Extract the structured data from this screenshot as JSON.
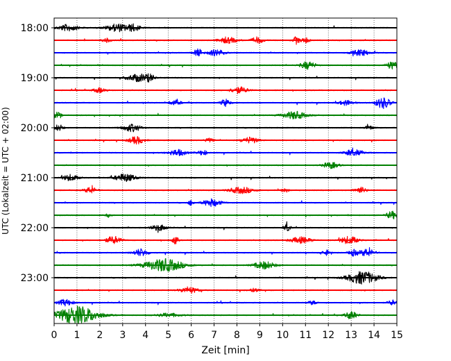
{
  "chart_data": {
    "type": "line",
    "xlabel": "Zeit  [min]",
    "ylabel": "UTC (Lokalzeit = UTC + 02:00)",
    "xlim": [
      0,
      15
    ],
    "x_ticks": [
      "0",
      "1",
      "2",
      "3",
      "4",
      "5",
      "6",
      "7",
      "8",
      "9",
      "10",
      "11",
      "12",
      "13",
      "14",
      "15"
    ],
    "y_ticks": [
      "18:00",
      "19:00",
      "20:00",
      "21:00",
      "22:00",
      "23:00"
    ],
    "grid": "vertical dotted",
    "colors": [
      "#000000",
      "#ff0000",
      "#0000ff",
      "#008000"
    ],
    "trace_interval_min": 15,
    "traces": [
      {
        "start": "18:00",
        "color": "#000000",
        "events": [
          [
            0.6,
            0.7,
            0.5
          ],
          [
            2.8,
            0.8,
            0.6
          ],
          [
            3.5,
            0.4,
            0.5
          ]
        ]
      },
      {
        "start": "18:15",
        "color": "#ff0000",
        "events": [
          [
            2.3,
            0.3,
            0.3
          ],
          [
            7.6,
            0.6,
            0.5
          ],
          [
            8.9,
            0.4,
            0.5
          ],
          [
            10.6,
            0.2,
            0.6
          ],
          [
            11.0,
            0.3,
            0.4
          ]
        ]
      },
      {
        "start": "18:30",
        "color": "#0000ff",
        "events": [
          [
            6.3,
            0.3,
            0.6
          ],
          [
            7.1,
            0.6,
            0.5
          ],
          [
            13.4,
            0.6,
            0.5
          ]
        ]
      },
      {
        "start": "18:45",
        "color": "#008000",
        "events": [
          [
            11.1,
            0.5,
            0.6
          ],
          [
            14.8,
            0.4,
            0.6
          ]
        ]
      },
      {
        "start": "19:00",
        "color": "#000000",
        "events": [
          [
            3.7,
            0.8,
            0.6
          ],
          [
            4.2,
            0.3,
            0.4
          ]
        ]
      },
      {
        "start": "19:15",
        "color": "#ff0000",
        "events": [
          [
            2.0,
            0.4,
            0.4
          ],
          [
            8.1,
            0.6,
            0.5
          ]
        ]
      },
      {
        "start": "19:30",
        "color": "#0000ff",
        "events": [
          [
            5.3,
            0.4,
            0.4
          ],
          [
            7.5,
            0.3,
            0.6
          ],
          [
            12.8,
            0.5,
            0.4
          ],
          [
            14.4,
            0.5,
            0.9
          ]
        ]
      },
      {
        "start": "19:45",
        "color": "#008000",
        "events": [
          [
            0.1,
            0.3,
            0.5
          ],
          [
            10.5,
            0.8,
            0.6
          ]
        ]
      },
      {
        "start": "20:00",
        "color": "#000000",
        "events": [
          [
            0.2,
            0.3,
            0.5
          ],
          [
            3.4,
            0.6,
            0.6
          ],
          [
            13.8,
            0.3,
            0.3
          ]
        ]
      },
      {
        "start": "20:15",
        "color": "#ff0000",
        "events": [
          [
            3.6,
            0.5,
            0.6
          ],
          [
            6.8,
            0.3,
            0.3
          ],
          [
            8.6,
            0.5,
            0.5
          ]
        ]
      },
      {
        "start": "20:30",
        "color": "#0000ff",
        "events": [
          [
            5.4,
            0.6,
            0.5
          ],
          [
            6.5,
            0.3,
            0.4
          ],
          [
            13.1,
            0.6,
            0.5
          ]
        ]
      },
      {
        "start": "20:45",
        "color": "#008000",
        "events": [
          [
            12.1,
            0.5,
            0.5
          ]
        ]
      },
      {
        "start": "21:00",
        "color": "#000000",
        "events": [
          [
            0.7,
            0.5,
            0.5
          ],
          [
            3.1,
            0.7,
            0.6
          ]
        ]
      },
      {
        "start": "21:15",
        "color": "#ff0000",
        "events": [
          [
            1.6,
            0.4,
            0.5
          ],
          [
            8.2,
            0.8,
            0.5
          ],
          [
            10.1,
            0.2,
            0.4
          ],
          [
            13.4,
            0.4,
            0.5
          ]
        ]
      },
      {
        "start": "21:30",
        "color": "#0000ff",
        "events": [
          [
            6.0,
            0.2,
            0.4
          ],
          [
            6.9,
            0.6,
            0.6
          ]
        ]
      },
      {
        "start": "21:45",
        "color": "#008000",
        "events": [
          [
            2.4,
            0.2,
            0.3
          ],
          [
            14.8,
            0.4,
            0.6
          ]
        ]
      },
      {
        "start": "22:00",
        "color": "#000000",
        "events": [
          [
            4.6,
            0.5,
            0.5
          ],
          [
            10.2,
            0.2,
            0.7
          ]
        ]
      },
      {
        "start": "22:15",
        "color": "#ff0000",
        "events": [
          [
            2.6,
            0.5,
            0.6
          ],
          [
            5.3,
            0.2,
            0.6
          ],
          [
            10.8,
            0.7,
            0.5
          ],
          [
            12.9,
            0.6,
            0.6
          ]
        ]
      },
      {
        "start": "22:30",
        "color": "#0000ff",
        "events": [
          [
            3.8,
            0.5,
            0.6
          ],
          [
            11.9,
            0.3,
            0.4
          ],
          [
            13.1,
            0.3,
            0.5
          ],
          [
            13.7,
            0.5,
            0.6
          ]
        ]
      },
      {
        "start": "22:45",
        "color": "#008000",
        "events": [
          [
            4.8,
            1.3,
            1.0
          ],
          [
            9.2,
            0.7,
            0.6
          ]
        ]
      },
      {
        "start": "23:00",
        "color": "#000000",
        "events": [
          [
            13.5,
            1.0,
            1.0
          ]
        ]
      },
      {
        "start": "23:15",
        "color": "#ff0000",
        "events": [
          [
            5.9,
            0.6,
            0.5
          ],
          [
            8.8,
            0.4,
            0.3
          ]
        ]
      },
      {
        "start": "23:30",
        "color": "#0000ff",
        "events": [
          [
            0.5,
            0.5,
            0.5
          ],
          [
            11.3,
            0.3,
            0.3
          ],
          [
            14.8,
            0.3,
            0.4
          ]
        ]
      },
      {
        "start": "23:45",
        "color": "#008000",
        "events": [
          [
            1.0,
            1.4,
            1.4
          ],
          [
            5.0,
            0.8,
            0.3
          ],
          [
            13.0,
            0.4,
            0.6
          ]
        ]
      }
    ]
  }
}
